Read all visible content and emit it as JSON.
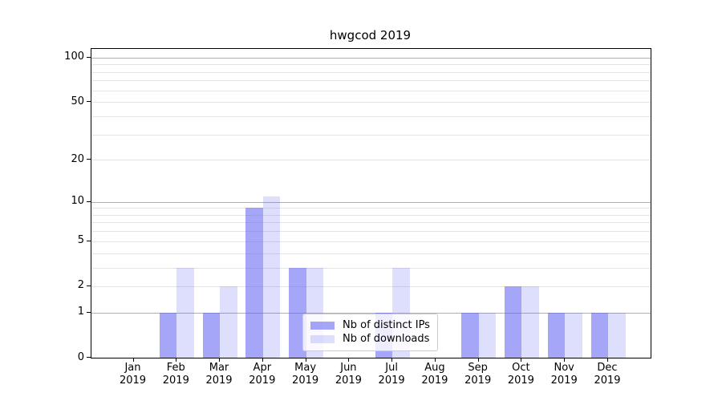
{
  "chart_data": {
    "type": "bar",
    "title": "hwgcod 2019",
    "categories": [
      "Jan 2019",
      "Feb 2019",
      "Mar 2019",
      "Apr 2019",
      "May 2019",
      "Jun 2019",
      "Jul 2019",
      "Aug 2019",
      "Sep 2019",
      "Oct 2019",
      "Nov 2019",
      "Dec 2019"
    ],
    "series": [
      {
        "name": "Nb of distinct IPs",
        "values": [
          0,
          1,
          1,
          9,
          3,
          0,
          1,
          0,
          1,
          2,
          1,
          1
        ],
        "color": "rgba(92,92,244,0.55)"
      },
      {
        "name": "Nb of downloads",
        "values": [
          0,
          3,
          2,
          11,
          3,
          0,
          3,
          0,
          1,
          2,
          1,
          1
        ],
        "color": "rgba(92,92,244,0.20)"
      }
    ],
    "xlabel": "",
    "ylabel": "",
    "y_scale": "log10(1+value)",
    "y_ticks": [
      0,
      1,
      2,
      5,
      10,
      20,
      50,
      100
    ],
    "y_major_gridlines": [
      1,
      10,
      100
    ],
    "y_minor_gridlines": [
      2,
      3,
      4,
      5,
      6,
      7,
      8,
      9,
      20,
      30,
      40,
      50,
      60,
      70,
      80,
      90
    ],
    "ylim_top_value": 113,
    "grid": true,
    "legend": {
      "position": "lower-center",
      "entries": [
        "Nb of distinct IPs",
        "Nb of downloads"
      ]
    },
    "colors": {
      "major_grid": "#b0b0b0",
      "minor_grid": "#e4e4e4",
      "axis": "#000000",
      "text": "#000000"
    }
  }
}
